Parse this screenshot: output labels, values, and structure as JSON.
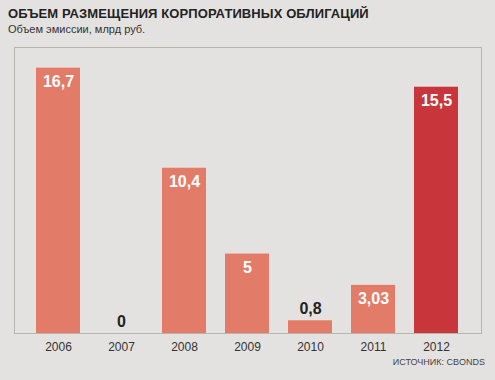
{
  "chart_data": {
    "type": "bar",
    "title": "ОБЪЕМ РАЗМЕЩЕНИЯ КОРПОРАТИВНЫХ ОБЛИГАЦИЙ",
    "subtitle": "Объем эмиссии, млрд руб.",
    "source": "ИСТОЧНИК: CBONDS",
    "categories": [
      "2006",
      "2007",
      "2008",
      "2009",
      "2010",
      "2011",
      "2012"
    ],
    "values": [
      16.7,
      0,
      10.4,
      5,
      0.8,
      3.03,
      15.5
    ],
    "value_labels": [
      "16,7",
      "0",
      "10,4",
      "5",
      "0,8",
      "3,03",
      "15,5"
    ],
    "colors": [
      "#e27c68",
      "#e27c68",
      "#e27c68",
      "#e27c68",
      "#e27c68",
      "#e27c68",
      "#c8363b"
    ],
    "ylim": [
      0,
      18
    ],
    "data_labels": true,
    "tick_labels": "x"
  }
}
